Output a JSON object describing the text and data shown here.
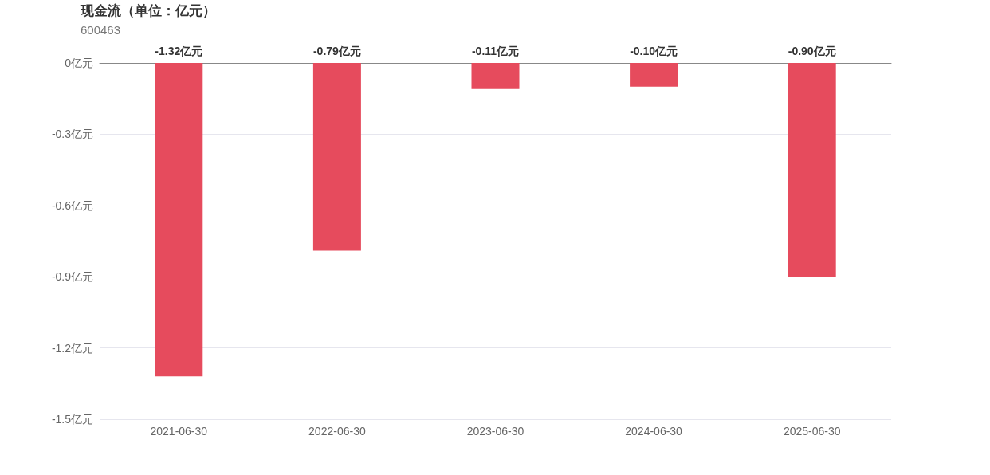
{
  "chart_data": {
    "type": "bar",
    "title": "现金流（单位：亿元）",
    "subtitle": "600463",
    "categories": [
      "2021-06-30",
      "2022-06-30",
      "2023-06-30",
      "2024-06-30",
      "2025-06-30"
    ],
    "values": [
      -1.32,
      -0.79,
      -0.11,
      -0.1,
      -0.9
    ],
    "value_labels": [
      "-1.32亿元",
      "-0.79亿元",
      "-0.11亿元",
      "-0.10亿元",
      "-0.90亿元"
    ],
    "color": "#e64b5d",
    "ylim": [
      -1.5,
      0
    ],
    "yticks": [
      {
        "value": 0,
        "label": "0亿元"
      },
      {
        "value": -0.3,
        "label": "-0.3亿元"
      },
      {
        "value": -0.6,
        "label": "-0.6亿元"
      },
      {
        "value": -0.9,
        "label": "-0.9亿元"
      },
      {
        "value": -1.2,
        "label": "-1.2亿元"
      },
      {
        "value": -1.5,
        "label": "-1.5亿元"
      }
    ],
    "grid": "y"
  }
}
